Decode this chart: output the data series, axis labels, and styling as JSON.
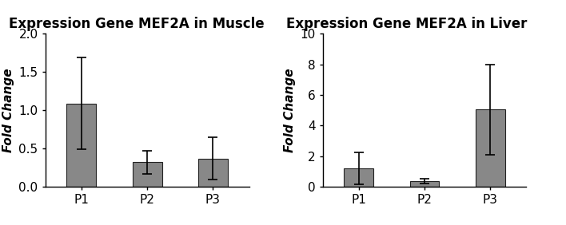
{
  "chart1": {
    "title": "Expression Gene MEF2A in Muscle",
    "categories": [
      "P1",
      "P2",
      "P3"
    ],
    "values": [
      1.09,
      0.32,
      0.37
    ],
    "errors": [
      0.6,
      0.15,
      0.28
    ],
    "ylim": [
      0,
      2.0
    ],
    "yticks": [
      0.0,
      0.5,
      1.0,
      1.5,
      2.0
    ],
    "ytick_labels": [
      "0.0",
      "0.5",
      "1.0",
      "1.5",
      "2.0"
    ],
    "ylabel": "Fold Change"
  },
  "chart2": {
    "title": "Expression Gene MEF2A in Liver",
    "categories": [
      "P1",
      "P2",
      "P3"
    ],
    "values": [
      1.2,
      0.38,
      5.05
    ],
    "errors": [
      1.05,
      0.15,
      2.95
    ],
    "ylim": [
      0,
      10
    ],
    "yticks": [
      0,
      2,
      4,
      6,
      8,
      10
    ],
    "ytick_labels": [
      "0",
      "2",
      "4",
      "6",
      "8",
      "10"
    ],
    "ylabel": "Fold Change"
  },
  "bar_color": "#888888",
  "bar_edge_color": "#222222",
  "error_color": "#000000",
  "title_fontsize": 12,
  "label_fontsize": 11,
  "tick_fontsize": 11,
  "cap_size": 4,
  "bar_width": 0.45
}
